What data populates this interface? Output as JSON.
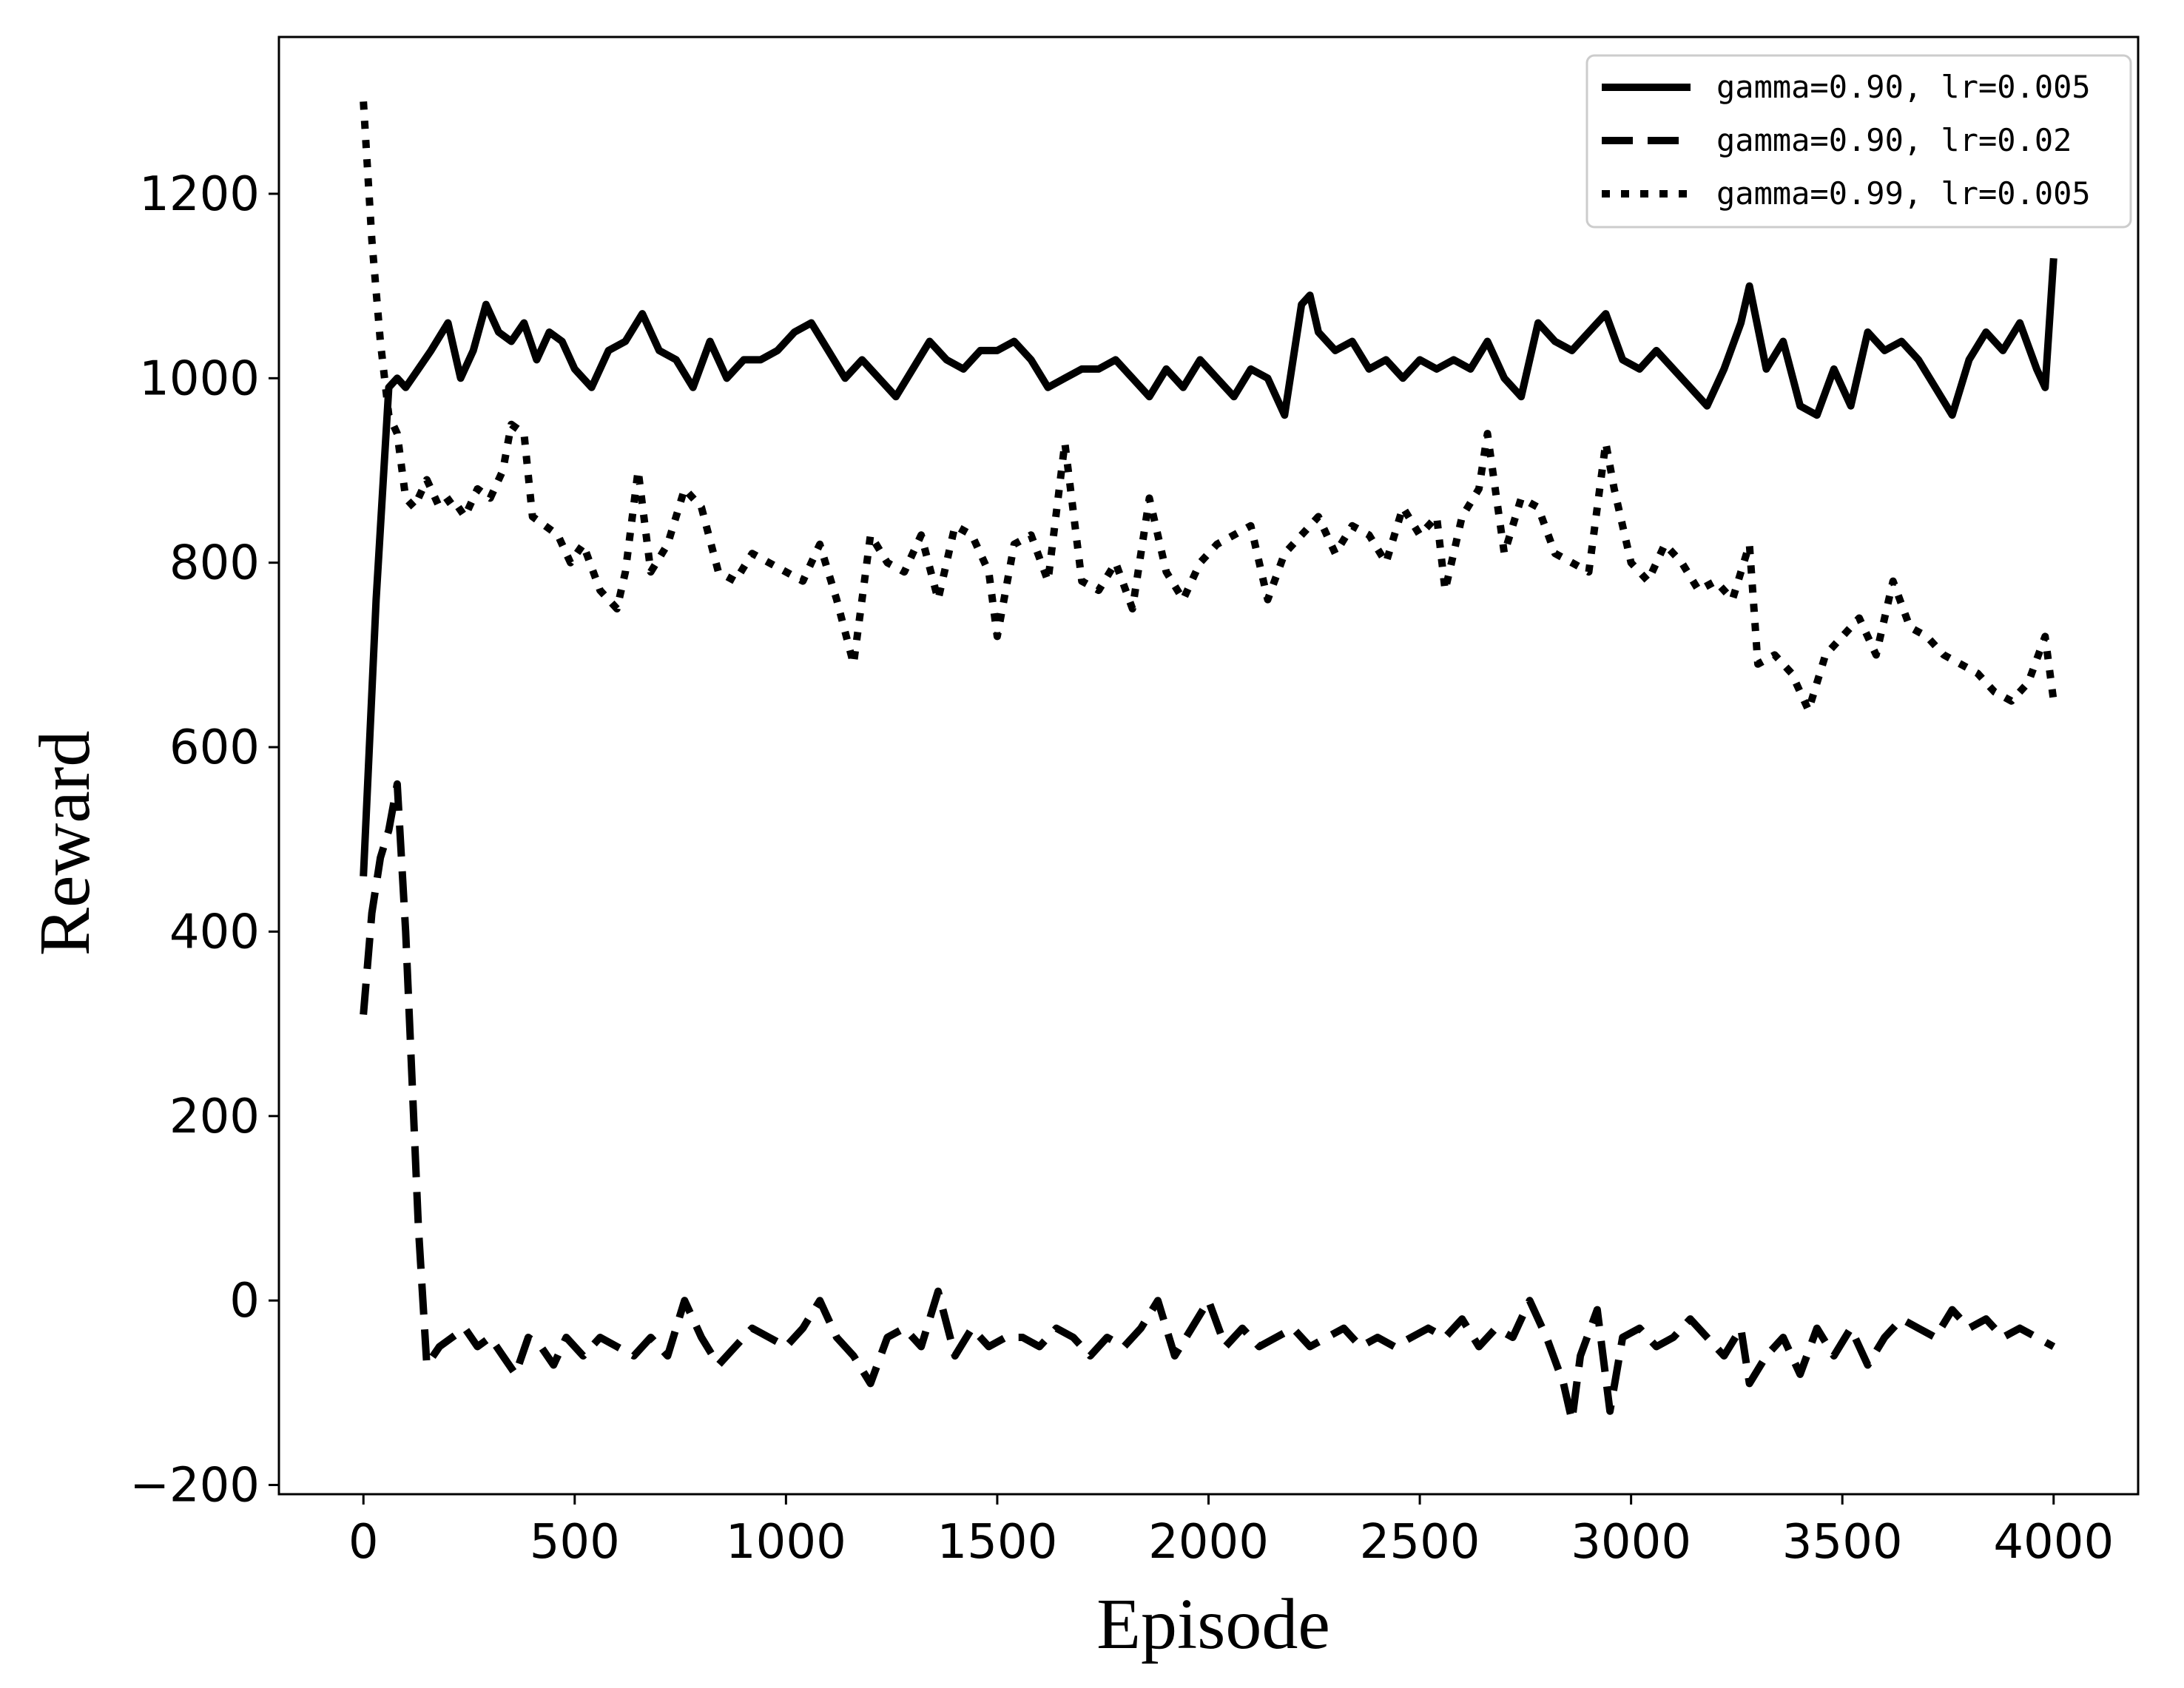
{
  "chart_data": {
    "type": "line",
    "title": "",
    "xlabel": "Episode",
    "ylabel": "Reward",
    "xlim": [
      -200,
      4200
    ],
    "ylim": [
      -210,
      1370
    ],
    "x_ticks": [
      0,
      500,
      1000,
      1500,
      2000,
      2500,
      3000,
      3500,
      4000
    ],
    "y_ticks": [
      -200,
      0,
      200,
      400,
      600,
      800,
      1000,
      1200
    ],
    "x_tick_labels": [
      "0",
      "500",
      "1000",
      "1500",
      "2000",
      "2500",
      "3000",
      "3500",
      "4000"
    ],
    "y_tick_labels": [
      "−200",
      "0",
      "200",
      "400",
      "600",
      "800",
      "1000",
      "1200"
    ],
    "grid": false,
    "legend_position": "top-right",
    "series": [
      {
        "name": "gamma=0.90, lr=0.005",
        "style": "solid",
        "color": "#000000",
        "x": [
          0,
          30,
          60,
          80,
          100,
          130,
          160,
          200,
          230,
          260,
          290,
          320,
          350,
          380,
          410,
          440,
          470,
          500,
          540,
          580,
          620,
          660,
          700,
          740,
          780,
          820,
          860,
          900,
          940,
          980,
          1020,
          1060,
          1100,
          1140,
          1180,
          1220,
          1260,
          1300,
          1340,
          1380,
          1420,
          1460,
          1500,
          1540,
          1580,
          1620,
          1660,
          1700,
          1740,
          1780,
          1820,
          1860,
          1900,
          1940,
          1980,
          2020,
          2060,
          2100,
          2140,
          2180,
          2220,
          2240,
          2260,
          2300,
          2340,
          2380,
          2420,
          2460,
          2500,
          2540,
          2580,
          2620,
          2660,
          2700,
          2740,
          2780,
          2820,
          2860,
          2900,
          2940,
          2980,
          3020,
          3060,
          3100,
          3140,
          3180,
          3220,
          3260,
          3280,
          3320,
          3360,
          3400,
          3440,
          3480,
          3520,
          3560,
          3600,
          3640,
          3680,
          3720,
          3760,
          3800,
          3840,
          3880,
          3920,
          3960,
          3980,
          4000
        ],
        "y": [
          460,
          760,
          990,
          1000,
          990,
          1010,
          1030,
          1060,
          1000,
          1030,
          1080,
          1050,
          1040,
          1060,
          1020,
          1050,
          1040,
          1010,
          990,
          1030,
          1040,
          1070,
          1030,
          1020,
          990,
          1040,
          1000,
          1020,
          1020,
          1030,
          1050,
          1060,
          1030,
          1000,
          1020,
          1000,
          980,
          1010,
          1040,
          1020,
          1010,
          1030,
          1030,
          1040,
          1020,
          990,
          1000,
          1010,
          1010,
          1020,
          1000,
          980,
          1010,
          990,
          1020,
          1000,
          980,
          1010,
          1000,
          960,
          1080,
          1090,
          1050,
          1030,
          1040,
          1010,
          1020,
          1000,
          1020,
          1010,
          1020,
          1010,
          1040,
          1000,
          980,
          1060,
          1040,
          1030,
          1050,
          1070,
          1020,
          1010,
          1030,
          1010,
          990,
          970,
          1010,
          1060,
          1100,
          1010,
          1040,
          970,
          960,
          1010,
          970,
          1050,
          1030,
          1040,
          1020,
          990,
          960,
          1020,
          1050,
          1030,
          1060,
          1010,
          990,
          1130
        ]
      },
      {
        "name": "gamma=0.90, lr=0.02",
        "style": "dashed",
        "color": "#000000",
        "x": [
          0,
          20,
          40,
          60,
          80,
          100,
          130,
          150,
          180,
          210,
          240,
          270,
          300,
          330,
          360,
          390,
          420,
          450,
          480,
          520,
          560,
          600,
          640,
          680,
          720,
          760,
          800,
          840,
          880,
          920,
          960,
          1000,
          1040,
          1080,
          1120,
          1160,
          1200,
          1240,
          1280,
          1320,
          1360,
          1400,
          1440,
          1480,
          1520,
          1560,
          1600,
          1640,
          1680,
          1720,
          1760,
          1800,
          1840,
          1880,
          1920,
          1960,
          2000,
          2040,
          2080,
          2120,
          2160,
          2200,
          2240,
          2280,
          2320,
          2360,
          2400,
          2440,
          2480,
          2520,
          2560,
          2600,
          2640,
          2680,
          2720,
          2760,
          2800,
          2840,
          2860,
          2880,
          2920,
          2950,
          2980,
          3020,
          3060,
          3100,
          3140,
          3180,
          3220,
          3260,
          3280,
          3320,
          3360,
          3400,
          3440,
          3480,
          3520,
          3560,
          3600,
          3640,
          3680,
          3720,
          3760,
          3800,
          3840,
          3880,
          3920,
          3960,
          4000
        ],
        "y": [
          310,
          420,
          480,
          510,
          560,
          400,
          80,
          -70,
          -50,
          -40,
          -30,
          -50,
          -40,
          -60,
          -80,
          -40,
          -50,
          -70,
          -40,
          -60,
          -40,
          -50,
          -60,
          -40,
          -60,
          0,
          -40,
          -70,
          -50,
          -30,
          -40,
          -50,
          -30,
          0,
          -40,
          -60,
          -90,
          -40,
          -30,
          -50,
          10,
          -60,
          -30,
          -50,
          -40,
          -40,
          -50,
          -30,
          -40,
          -60,
          -40,
          -50,
          -30,
          0,
          -60,
          -30,
          0,
          -50,
          -30,
          -50,
          -40,
          -30,
          -50,
          -40,
          -30,
          -50,
          -40,
          -50,
          -40,
          -30,
          -40,
          -20,
          -50,
          -30,
          -40,
          0,
          -40,
          -90,
          -130,
          -60,
          -10,
          -120,
          -40,
          -30,
          -50,
          -40,
          -20,
          -40,
          -60,
          -30,
          -90,
          -60,
          -40,
          -80,
          -30,
          -60,
          -30,
          -70,
          -40,
          -20,
          -30,
          -40,
          -10,
          -30,
          -20,
          -40,
          -30,
          -40,
          -50
        ]
      },
      {
        "name": "gamma=0.99, lr=0.005",
        "style": "dotted",
        "color": "#000000",
        "x": [
          0,
          20,
          40,
          60,
          80,
          100,
          120,
          150,
          180,
          210,
          240,
          270,
          300,
          330,
          350,
          380,
          400,
          430,
          460,
          490,
          520,
          560,
          600,
          620,
          650,
          680,
          720,
          760,
          800,
          840,
          880,
          920,
          960,
          1000,
          1040,
          1080,
          1120,
          1160,
          1200,
          1240,
          1280,
          1320,
          1360,
          1400,
          1440,
          1480,
          1500,
          1540,
          1580,
          1620,
          1660,
          1700,
          1740,
          1780,
          1820,
          1860,
          1900,
          1940,
          1980,
          2020,
          2060,
          2100,
          2140,
          2180,
          2220,
          2260,
          2300,
          2340,
          2380,
          2420,
          2460,
          2500,
          2540,
          2560,
          2600,
          2640,
          2660,
          2700,
          2740,
          2780,
          2820,
          2860,
          2900,
          2940,
          2960,
          3000,
          3040,
          3080,
          3120,
          3160,
          3200,
          3240,
          3280,
          3300,
          3340,
          3380,
          3420,
          3460,
          3500,
          3540,
          3580,
          3620,
          3660,
          3700,
          3740,
          3780,
          3820,
          3860,
          3900,
          3940,
          3980,
          4000
        ],
        "y": [
          1300,
          1150,
          1040,
          960,
          940,
          870,
          860,
          890,
          860,
          870,
          850,
          880,
          870,
          900,
          950,
          940,
          850,
          840,
          830,
          800,
          820,
          770,
          750,
          790,
          900,
          790,
          820,
          880,
          860,
          790,
          780,
          810,
          800,
          790,
          780,
          820,
          760,
          690,
          830,
          800,
          790,
          830,
          760,
          840,
          830,
          790,
          720,
          820,
          830,
          780,
          930,
          780,
          770,
          800,
          750,
          870,
          790,
          760,
          800,
          820,
          830,
          840,
          760,
          810,
          830,
          850,
          810,
          840,
          830,
          800,
          860,
          830,
          850,
          770,
          850,
          880,
          940,
          810,
          870,
          860,
          810,
          800,
          790,
          930,
          880,
          800,
          780,
          820,
          800,
          770,
          780,
          760,
          820,
          690,
          700,
          680,
          640,
          700,
          720,
          740,
          700,
          780,
          730,
          720,
          700,
          690,
          680,
          660,
          650,
          670,
          720,
          650
        ]
      }
    ]
  }
}
